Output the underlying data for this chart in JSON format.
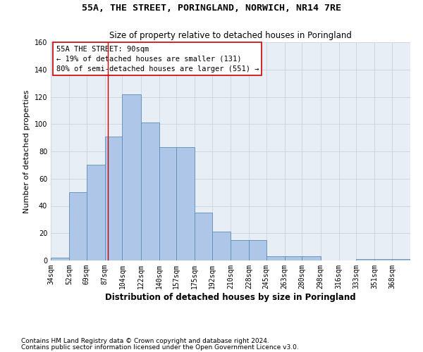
{
  "title": "55A, THE STREET, PORINGLAND, NORWICH, NR14 7RE",
  "subtitle": "Size of property relative to detached houses in Poringland",
  "xlabel": "Distribution of detached houses by size in Poringland",
  "ylabel": "Number of detached properties",
  "bar_color": "#aec6e8",
  "bar_edge_color": "#5b8db8",
  "background_color": "#e8eef5",
  "annotation_text": "55A THE STREET: 90sqm\n← 19% of detached houses are smaller (131)\n80% of semi-detached houses are larger (551) →",
  "vline_x": 90,
  "bin_edges": [
    34,
    52,
    69,
    87,
    104,
    122,
    140,
    157,
    175,
    192,
    210,
    228,
    245,
    263,
    280,
    298,
    316,
    333,
    351,
    368,
    386
  ],
  "bin_counts": [
    2,
    50,
    70,
    91,
    122,
    101,
    83,
    83,
    35,
    21,
    15,
    15,
    3,
    3,
    3,
    0,
    0,
    1,
    1,
    1
  ],
  "ylim": [
    0,
    160
  ],
  "yticks": [
    0,
    20,
    40,
    60,
    80,
    100,
    120,
    140,
    160
  ],
  "footer_line1": "Contains HM Land Registry data © Crown copyright and database right 2024.",
  "footer_line2": "Contains public sector information licensed under the Open Government Licence v3.0.",
  "annotation_box_color": "#ffffff",
  "annotation_box_edge": "#cc0000",
  "vline_color": "#cc0000",
  "grid_color": "#c8d4e0",
  "title_fontsize": 9.5,
  "subtitle_fontsize": 8.5,
  "ylabel_fontsize": 8,
  "xlabel_fontsize": 8.5,
  "tick_fontsize": 7,
  "annotation_fontsize": 7.5,
  "footer_fontsize": 6.5
}
